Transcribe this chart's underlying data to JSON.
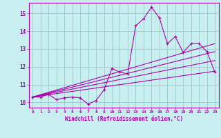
{
  "xlabel": "Windchill (Refroidissement éolien,°C)",
  "xlim": [
    -0.5,
    23.5
  ],
  "ylim": [
    9.7,
    15.6
  ],
  "bg_color": "#c8eef0",
  "line_color": "#aa00aa",
  "grid_color": "#99cccc",
  "xtick_vals": [
    0,
    1,
    2,
    3,
    4,
    5,
    6,
    7,
    8,
    9,
    10,
    11,
    12,
    13,
    14,
    15,
    16,
    17,
    18,
    19,
    20,
    21,
    22,
    23
  ],
  "xtick_labels": [
    "0",
    "1",
    "2",
    "3",
    "4",
    "5",
    "6",
    "7",
    "8",
    "9",
    "10",
    "11",
    "12",
    "13",
    "14",
    "15",
    "16",
    "17",
    "18",
    "19",
    "20",
    "21",
    "22",
    "23"
  ],
  "ytick_vals": [
    10,
    11,
    12,
    13,
    14,
    15
  ],
  "ytick_labels": [
    "10",
    "11",
    "12",
    "13",
    "14",
    "15"
  ],
  "line1_x": [
    0,
    1,
    2,
    3,
    4,
    5,
    6,
    7,
    8,
    9,
    10,
    11,
    12,
    13,
    14,
    15,
    16,
    17,
    18,
    19,
    20,
    21,
    22,
    23
  ],
  "line1_y": [
    10.3,
    10.3,
    10.45,
    10.15,
    10.25,
    10.3,
    10.25,
    9.9,
    10.1,
    10.7,
    11.9,
    11.7,
    11.6,
    14.3,
    14.7,
    15.35,
    14.75,
    13.3,
    13.7,
    12.8,
    13.3,
    13.3,
    12.85,
    11.7
  ],
  "line2_x": [
    0,
    23
  ],
  "line2_y": [
    10.3,
    11.75
  ],
  "line3_x": [
    0,
    23
  ],
  "line3_y": [
    10.3,
    12.35
  ],
  "line4_x": [
    0,
    23
  ],
  "line4_y": [
    10.3,
    12.85
  ],
  "line5_x": [
    0,
    23
  ],
  "line5_y": [
    10.3,
    13.3
  ]
}
